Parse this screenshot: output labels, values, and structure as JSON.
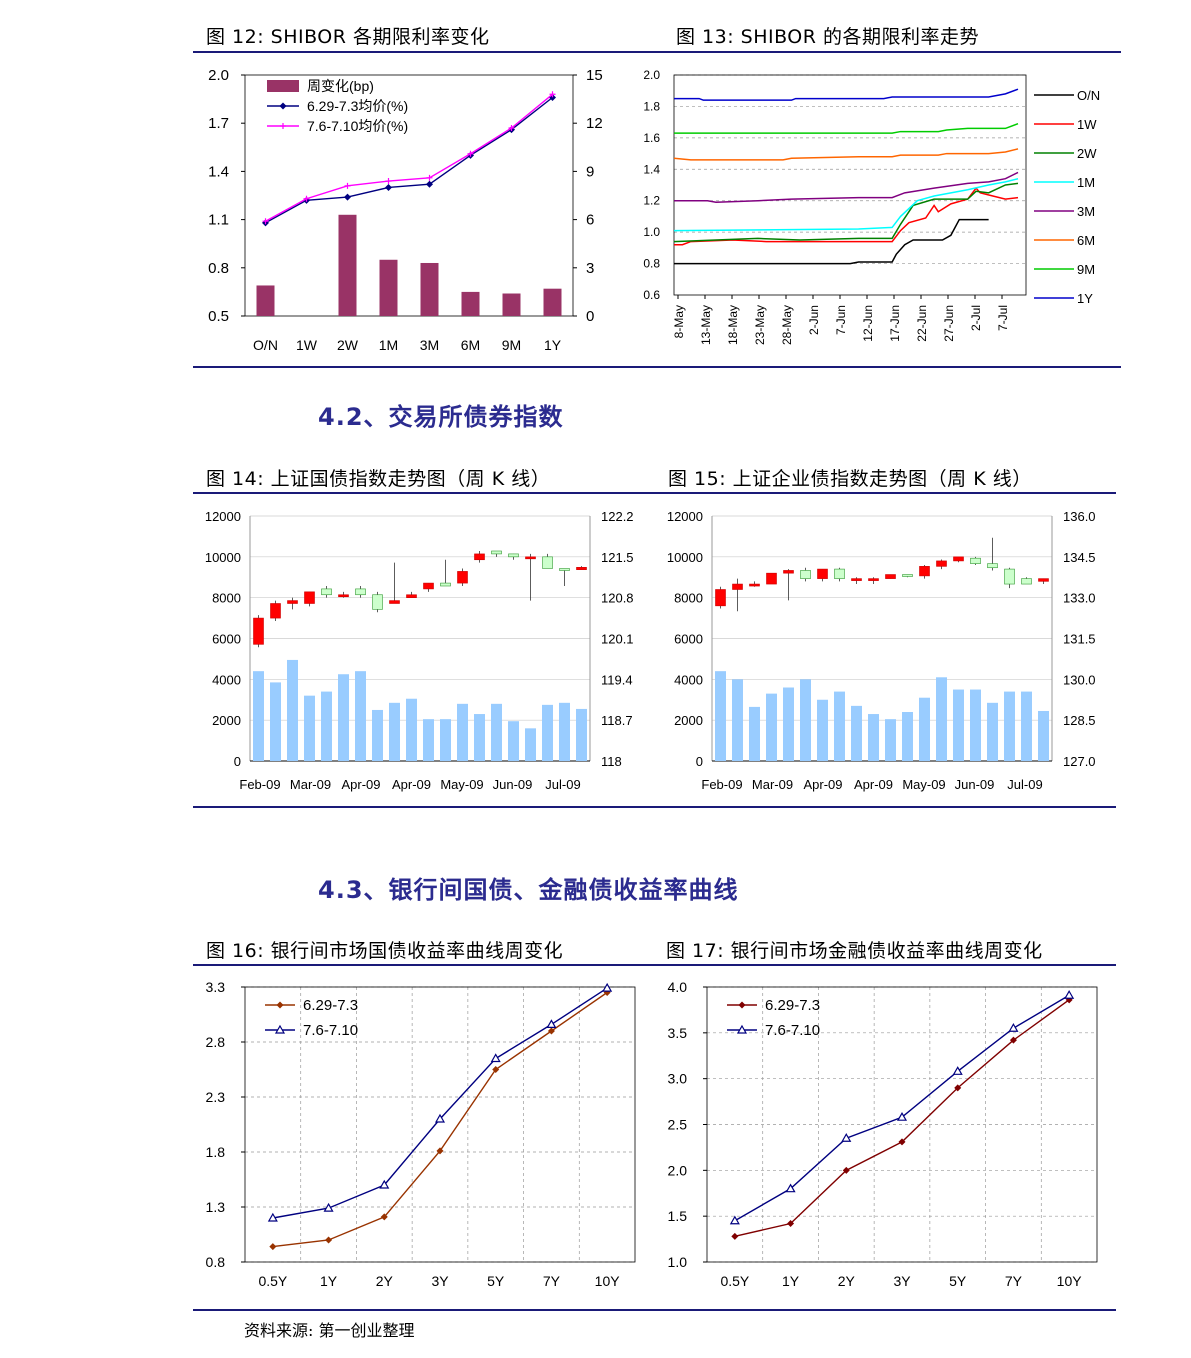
{
  "figures": {
    "f12": {
      "title": "图 12:  SHIBOR 各期限利率变化"
    },
    "f13": {
      "title": "图 13:  SHIBOR 的各期限利率走势"
    },
    "f14": {
      "title": "图 14:  上证国债指数走势图（周 K 线）"
    },
    "f15": {
      "title": "图 15:  上证企业债指数走势图（周 K 线）"
    },
    "f16": {
      "title": "图 16:  银行间市场国债收益率曲线周变化"
    },
    "f17": {
      "title": "图 17:  银行间市场金融债收益率曲线周变化"
    }
  },
  "sections": {
    "s42": "4.2、交易所债券指数",
    "s43": "4.3、银行间国债、金融债收益率曲线"
  },
  "footer": {
    "source": "资料来源:      第一创业整理"
  },
  "colors": {
    "rule": "#1a1a78",
    "section": "#2b2b8f",
    "bar12": "#993366",
    "up": "#ff0000",
    "down": "#ccffcc",
    "volume": "#99ccff"
  },
  "chart_data": [
    {
      "id": "f12",
      "type": "bar+line",
      "categories": [
        "O/N",
        "1W",
        "2W",
        "1M",
        "3M",
        "6M",
        "9M",
        "1Y"
      ],
      "series": [
        {
          "name": "周变化(bp)",
          "kind": "bar",
          "axis": "right",
          "values": [
            1.9,
            0,
            6.3,
            3.5,
            3.3,
            1.5,
            1.4,
            1.7
          ]
        },
        {
          "name": "6.29-7.3均价(%)",
          "kind": "line",
          "axis": "left",
          "color": "#000080",
          "values": [
            1.08,
            1.22,
            1.24,
            1.3,
            1.32,
            1.5,
            1.66,
            1.86
          ]
        },
        {
          "name": "7.6-7.10均价(%)",
          "kind": "line",
          "axis": "left",
          "color": "#ff00ff",
          "values": [
            1.09,
            1.23,
            1.31,
            1.34,
            1.36,
            1.51,
            1.67,
            1.88
          ]
        }
      ],
      "yleft": {
        "min": 0.5,
        "max": 2.0,
        "ticks": [
          "0.5",
          "0.8",
          "1.1",
          "1.4",
          "1.7",
          "2.0"
        ]
      },
      "yright": {
        "min": 0,
        "max": 15,
        "ticks": [
          "0",
          "3",
          "6",
          "9",
          "12",
          "15"
        ]
      }
    },
    {
      "id": "f13",
      "type": "line",
      "x_labels": [
        "8-May",
        "13-May",
        "18-May",
        "23-May",
        "28-May",
        "2-Jun",
        "7-Jun",
        "12-Jun",
        "17-Jun",
        "22-Jun",
        "27-Jun",
        "2-Jul",
        "7-Jul"
      ],
      "n_points": 62,
      "ylim": [
        0.6,
        2.0
      ],
      "y_ticks": [
        "0.6",
        "0.8",
        "1.0",
        "1.2",
        "1.4",
        "1.6",
        "1.8",
        "2.0"
      ],
      "series": [
        {
          "name": "O/N",
          "color": "#000000",
          "points": [
            [
              0,
              0.8
            ],
            [
              42,
              0.8
            ],
            [
              44,
              0.81
            ],
            [
              52,
              0.81
            ],
            [
              53,
              0.86
            ],
            [
              55,
              0.92
            ],
            [
              57,
              0.95
            ],
            [
              64,
              0.95
            ],
            [
              66,
              0.98
            ],
            [
              68,
              1.08
            ],
            [
              75,
              1.08
            ]
          ]
        },
        {
          "name": "1W",
          "color": "#ff0000",
          "points": [
            [
              0,
              0.92
            ],
            [
              2,
              0.92
            ],
            [
              4,
              0.94
            ],
            [
              14,
              0.95
            ],
            [
              22,
              0.94
            ],
            [
              33,
              0.94
            ],
            [
              44,
              0.94
            ],
            [
              52,
              0.94
            ],
            [
              54,
              1.01
            ],
            [
              56,
              1.06
            ],
            [
              60,
              1.09
            ],
            [
              62,
              1.17
            ],
            [
              63,
              1.13
            ],
            [
              66,
              1.18
            ],
            [
              70,
              1.21
            ],
            [
              72,
              1.28
            ],
            [
              73,
              1.25
            ],
            [
              76,
              1.23
            ],
            [
              79,
              1.21
            ],
            [
              82,
              1.22
            ]
          ]
        },
        {
          "name": "2W",
          "color": "#008000",
          "points": [
            [
              0,
              0.94
            ],
            [
              20,
              0.96
            ],
            [
              30,
              0.95
            ],
            [
              44,
              0.96
            ],
            [
              52,
              0.96
            ],
            [
              54,
              1.05
            ],
            [
              57,
              1.17
            ],
            [
              62,
              1.21
            ],
            [
              70,
              1.21
            ],
            [
              72,
              1.26
            ],
            [
              75,
              1.25
            ],
            [
              79,
              1.3
            ],
            [
              82,
              1.31
            ]
          ]
        },
        {
          "name": "1M",
          "color": "#00ffff",
          "points": [
            [
              0,
              1.01
            ],
            [
              44,
              1.02
            ],
            [
              52,
              1.03
            ],
            [
              54,
              1.1
            ],
            [
              58,
              1.2
            ],
            [
              62,
              1.23
            ],
            [
              70,
              1.27
            ],
            [
              75,
              1.3
            ],
            [
              79,
              1.32
            ],
            [
              82,
              1.34
            ]
          ]
        },
        {
          "name": "3M",
          "color": "#800080",
          "points": [
            [
              0,
              1.2
            ],
            [
              8,
              1.2
            ],
            [
              10,
              1.19
            ],
            [
              20,
              1.2
            ],
            [
              28,
              1.21
            ],
            [
              44,
              1.22
            ],
            [
              52,
              1.22
            ],
            [
              55,
              1.25
            ],
            [
              62,
              1.28
            ],
            [
              70,
              1.31
            ],
            [
              75,
              1.32
            ],
            [
              79,
              1.34
            ],
            [
              82,
              1.38
            ]
          ]
        },
        {
          "name": "6M",
          "color": "#ff6600",
          "points": [
            [
              0,
              1.47
            ],
            [
              4,
              1.46
            ],
            [
              26,
              1.46
            ],
            [
              28,
              1.47
            ],
            [
              44,
              1.48
            ],
            [
              52,
              1.48
            ],
            [
              54,
              1.49
            ],
            [
              63,
              1.49
            ],
            [
              65,
              1.5
            ],
            [
              75,
              1.5
            ],
            [
              79,
              1.51
            ],
            [
              82,
              1.53
            ]
          ]
        },
        {
          "name": "9M",
          "color": "#00cc00",
          "points": [
            [
              0,
              1.63
            ],
            [
              52,
              1.63
            ],
            [
              54,
              1.64
            ],
            [
              63,
              1.64
            ],
            [
              65,
              1.65
            ],
            [
              70,
              1.66
            ],
            [
              79,
              1.66
            ],
            [
              82,
              1.69
            ]
          ]
        },
        {
          "name": "1Y",
          "color": "#0000cc",
          "points": [
            [
              0,
              1.85
            ],
            [
              6,
              1.85
            ],
            [
              7,
              1.84
            ],
            [
              28,
              1.84
            ],
            [
              29,
              1.85
            ],
            [
              50,
              1.85
            ],
            [
              52,
              1.86
            ],
            [
              75,
              1.86
            ],
            [
              79,
              1.88
            ],
            [
              82,
              1.91
            ]
          ]
        }
      ]
    },
    {
      "id": "f14",
      "type": "candlestick+bar",
      "x_labels": [
        "Feb-09",
        "Mar-09",
        "Apr-09",
        "Apr-09",
        "May-09",
        "Jun-09",
        "Jul-09"
      ],
      "yleft": {
        "min": 0,
        "max": 12000,
        "ticks": [
          "0",
          "2000",
          "4000",
          "6000",
          "8000",
          "10000",
          "12000"
        ]
      },
      "yright": {
        "min": 118,
        "max": 122.2,
        "ticks": [
          "118",
          "118.7",
          "119.4",
          "120.1",
          "120.8",
          "121.5",
          "122.2"
        ]
      },
      "volume": [
        4400,
        3850,
        4950,
        3200,
        3400,
        4250,
        4400,
        2500,
        2850,
        3050,
        2050,
        2050,
        2800,
        2300,
        2800,
        1950,
        1600,
        2750,
        2850,
        2550
      ],
      "candles": [
        [
          120.0,
          120.45,
          119.95,
          120.5
        ],
        [
          120.45,
          120.7,
          120.4,
          120.75
        ],
        [
          120.7,
          120.75,
          120.6,
          120.8
        ],
        [
          120.7,
          120.9,
          120.65,
          120.9
        ],
        [
          120.95,
          120.85,
          120.8,
          121.0
        ],
        [
          120.85,
          120.85,
          120.8,
          120.9
        ],
        [
          120.95,
          120.85,
          120.8,
          121.0
        ],
        [
          120.85,
          120.6,
          120.55,
          120.9
        ],
        [
          120.7,
          120.75,
          120.7,
          121.4
        ],
        [
          120.8,
          120.85,
          120.8,
          120.9
        ],
        [
          120.95,
          121.05,
          120.9,
          121.05
        ],
        [
          121.05,
          121.0,
          121.0,
          121.45
        ],
        [
          121.05,
          121.25,
          121.0,
          121.3
        ],
        [
          121.45,
          121.55,
          121.4,
          121.6
        ],
        [
          121.6,
          121.55,
          121.5,
          121.6
        ],
        [
          121.55,
          121.5,
          121.45,
          121.55
        ],
        [
          121.5,
          121.5,
          120.75,
          121.55
        ],
        [
          121.5,
          121.3,
          121.3,
          121.55
        ],
        [
          121.3,
          121.28,
          121.0,
          121.3
        ],
        [
          121.28,
          121.32,
          121.28,
          121.34
        ]
      ]
    },
    {
      "id": "f15",
      "type": "candlestick+bar",
      "x_labels": [
        "Feb-09",
        "Mar-09",
        "Apr-09",
        "Apr-09",
        "May-09",
        "Jun-09",
        "Jul-09"
      ],
      "yleft": {
        "min": 0,
        "max": 12000,
        "ticks": [
          "0",
          "2000",
          "4000",
          "6000",
          "8000",
          "10000",
          "12000"
        ]
      },
      "yright": {
        "min": 127.0,
        "max": 136.0,
        "ticks": [
          "127.0",
          "128.5",
          "130.0",
          "131.5",
          "133.0",
          "134.5",
          "136.0"
        ]
      },
      "volume": [
        4400,
        4000,
        2650,
        3300,
        3600,
        4000,
        3000,
        3400,
        2700,
        2300,
        2050,
        2400,
        3100,
        4100,
        3500,
        3500,
        2850,
        3400,
        3400,
        2450
      ],
      "candles": [
        [
          132.7,
          133.3,
          132.6,
          133.4
        ],
        [
          133.3,
          133.5,
          132.5,
          133.7
        ],
        [
          133.5,
          133.5,
          133.4,
          133.6
        ],
        [
          133.5,
          133.9,
          133.5,
          133.9
        ],
        [
          133.9,
          134.0,
          132.9,
          134.05
        ],
        [
          134.0,
          133.7,
          133.6,
          134.1
        ],
        [
          133.7,
          134.05,
          133.6,
          134.05
        ],
        [
          134.05,
          133.7,
          133.6,
          134.1
        ],
        [
          133.7,
          133.7,
          133.5,
          133.75
        ],
        [
          133.7,
          133.7,
          133.5,
          133.75
        ],
        [
          133.7,
          133.85,
          133.7,
          133.85
        ],
        [
          133.85,
          133.8,
          133.75,
          133.85
        ],
        [
          133.8,
          134.15,
          133.7,
          134.2
        ],
        [
          134.15,
          134.35,
          134.05,
          134.4
        ],
        [
          134.35,
          134.5,
          134.3,
          134.5
        ],
        [
          134.45,
          134.25,
          134.2,
          134.5
        ],
        [
          134.25,
          134.1,
          134.0,
          135.2
        ],
        [
          134.05,
          133.5,
          133.35,
          134.1
        ],
        [
          133.7,
          133.5,
          133.5,
          133.75
        ],
        [
          133.6,
          133.7,
          133.5,
          133.7
        ]
      ]
    },
    {
      "id": "f16",
      "type": "line",
      "categories": [
        "0.5Y",
        "1Y",
        "2Y",
        "3Y",
        "5Y",
        "7Y",
        "10Y"
      ],
      "ylim": [
        0.8,
        3.3
      ],
      "y_ticks": [
        "0.8",
        "1.3",
        "1.8",
        "2.3",
        "2.8",
        "3.3"
      ],
      "series": [
        {
          "name": "6.29-7.3",
          "color": "#993300",
          "marker": "diamond",
          "values": [
            0.94,
            1.0,
            1.21,
            1.81,
            2.55,
            2.9,
            3.25
          ]
        },
        {
          "name": "7.6-7.10",
          "color": "#000080",
          "marker": "triangle",
          "values": [
            1.2,
            1.29,
            1.5,
            2.1,
            2.65,
            2.96,
            3.29
          ]
        }
      ]
    },
    {
      "id": "f17",
      "type": "line",
      "categories": [
        "0.5Y",
        "1Y",
        "2Y",
        "3Y",
        "5Y",
        "7Y",
        "10Y"
      ],
      "ylim": [
        1.0,
        4.0
      ],
      "y_ticks": [
        "1.0",
        "1.5",
        "2.0",
        "2.5",
        "3.0",
        "3.5",
        "4.0"
      ],
      "series": [
        {
          "name": "6.29-7.3",
          "color": "#800000",
          "marker": "diamond",
          "values": [
            1.28,
            1.42,
            2.0,
            2.31,
            2.9,
            3.42,
            3.86
          ]
        },
        {
          "name": "7.6-7.10",
          "color": "#000080",
          "marker": "triangle",
          "values": [
            1.45,
            1.8,
            2.35,
            2.58,
            3.08,
            3.55,
            3.91
          ]
        }
      ]
    }
  ]
}
